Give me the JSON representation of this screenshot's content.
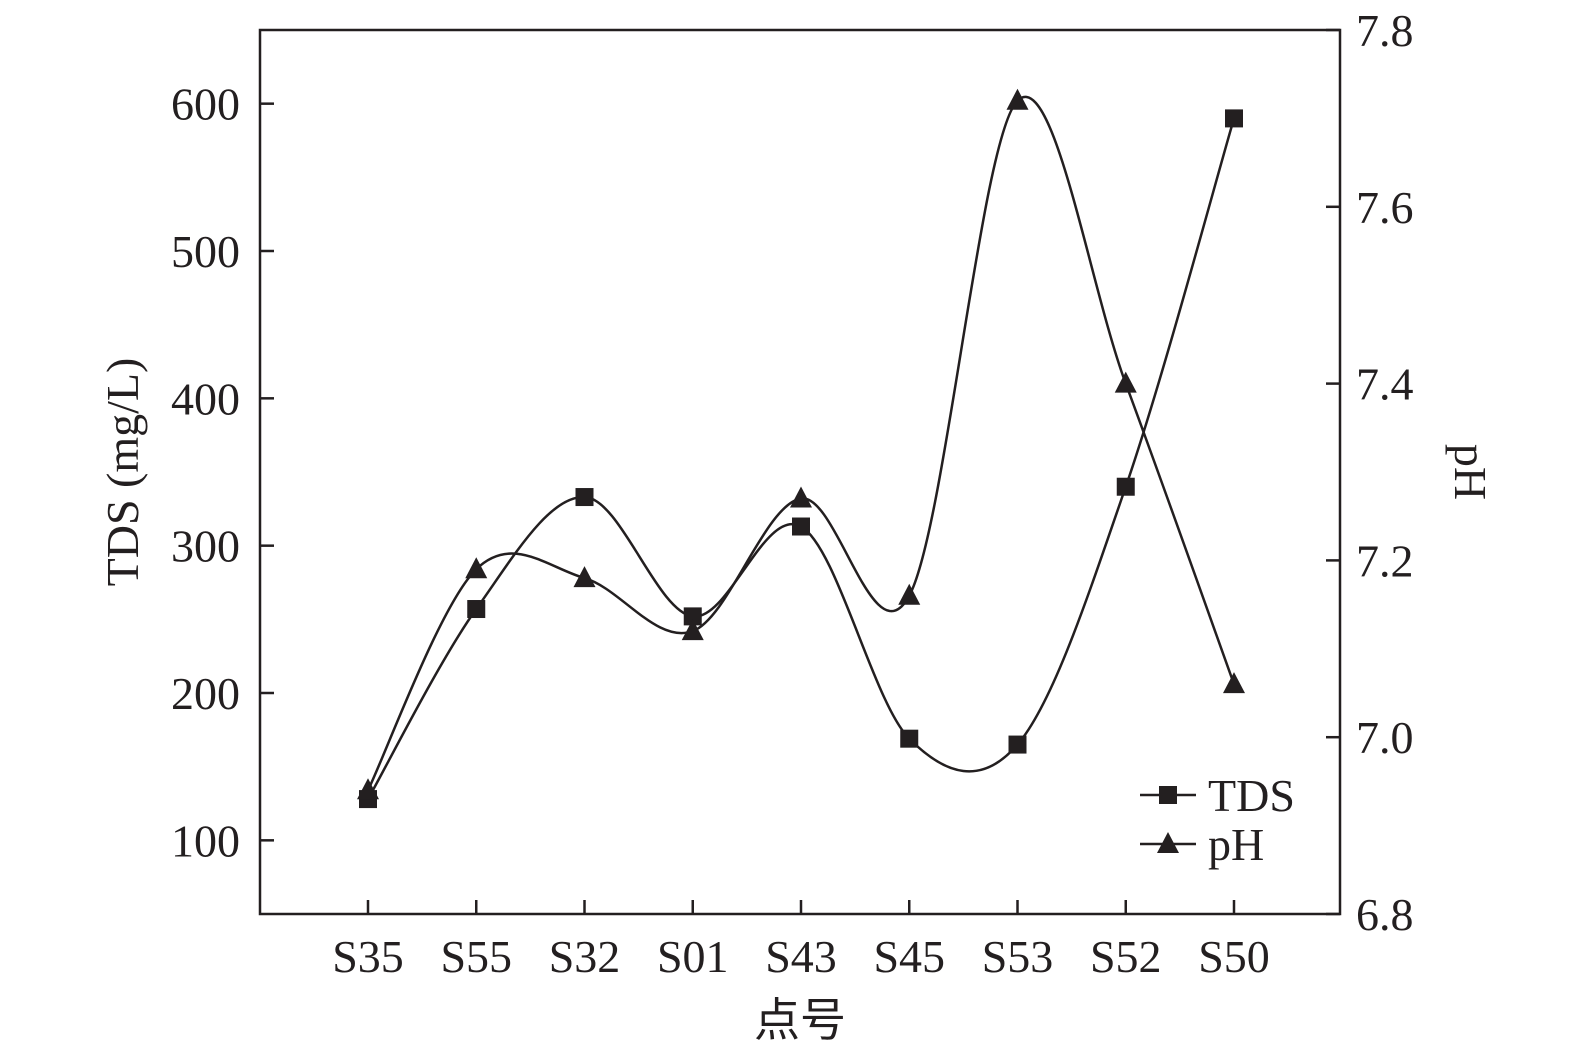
{
  "chart_data": {
    "type": "line",
    "xlabel": "点号",
    "ylabel_left": "TDS (mg/L)",
    "ylabel_right": "pH",
    "categories": [
      "S35",
      "S55",
      "S32",
      "S01",
      "S43",
      "S45",
      "S53",
      "S52",
      "S50"
    ],
    "y_left": {
      "range": [
        50,
        650
      ],
      "ticks": [
        "100",
        "200",
        "300",
        "400",
        "500",
        "600"
      ]
    },
    "y_right": {
      "range": [
        6.8,
        7.8
      ],
      "ticks": [
        "6.8",
        "7.0",
        "7.2",
        "7.4",
        "7.6",
        "7.8"
      ]
    },
    "grid": false,
    "legend_position": "bottom-right",
    "series": [
      {
        "name": "TDS",
        "axis": "left",
        "marker": "square",
        "smooth": true,
        "values": [
          128,
          257,
          333,
          252,
          313,
          169,
          165,
          340,
          590
        ]
      },
      {
        "name": "pH",
        "axis": "right",
        "marker": "triangle",
        "smooth": true,
        "values": [
          6.94,
          7.19,
          7.18,
          7.12,
          7.27,
          7.16,
          7.72,
          7.4,
          7.06
        ]
      }
    ]
  }
}
